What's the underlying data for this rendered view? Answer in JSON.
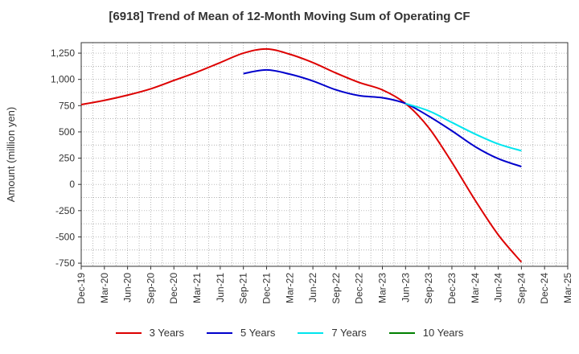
{
  "chart_data": {
    "type": "line",
    "title": "[6918]  Trend of Mean of 12-Month Moving Sum of Operating CF",
    "xlabel": "",
    "ylabel": "Amount (million yen)",
    "categories": [
      "Dec-19",
      "Mar-20",
      "Jun-20",
      "Sep-20",
      "Dec-20",
      "Mar-21",
      "Jun-21",
      "Sep-21",
      "Dec-21",
      "Mar-22",
      "Jun-22",
      "Sep-22",
      "Dec-22",
      "Mar-23",
      "Jun-23",
      "Sep-23",
      "Dec-23",
      "Mar-24",
      "Jun-24",
      "Sep-24",
      "Dec-24",
      "Mar-25"
    ],
    "ylim": [
      -780,
      1350
    ],
    "yticks": [
      -750,
      -500,
      -250,
      0,
      250,
      500,
      750,
      1000,
      1250
    ],
    "ytick_labels": [
      "-750",
      "-500",
      "-250",
      "0",
      "250",
      "500",
      "750",
      "1,000",
      "1,250"
    ],
    "grid": true,
    "series": [
      {
        "name": "3 Years",
        "color": "#dd0000",
        "values": [
          760,
          800,
          850,
          910,
          990,
          1070,
          1160,
          1250,
          1290,
          1240,
          1160,
          1060,
          970,
          900,
          770,
          540,
          210,
          -150,
          -480,
          -740,
          null,
          null
        ]
      },
      {
        "name": "5 Years",
        "color": "#0000cc",
        "values": [
          null,
          null,
          null,
          null,
          null,
          null,
          null,
          1055,
          1090,
          1050,
          985,
          900,
          845,
          825,
          770,
          650,
          510,
          360,
          245,
          170,
          null,
          null
        ]
      },
      {
        "name": "7 Years",
        "color": "#00e5ee",
        "values": [
          null,
          null,
          null,
          null,
          null,
          null,
          null,
          null,
          null,
          null,
          null,
          null,
          null,
          null,
          770,
          700,
          590,
          480,
          385,
          320,
          null,
          null
        ]
      },
      {
        "name": "10 Years",
        "color": "#008000",
        "values": [
          null,
          null,
          null,
          null,
          null,
          null,
          null,
          null,
          null,
          null,
          null,
          null,
          null,
          null,
          null,
          null,
          null,
          null,
          null,
          null,
          null,
          null
        ]
      }
    ]
  }
}
